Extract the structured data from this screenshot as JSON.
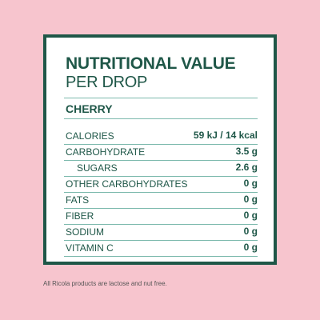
{
  "label": {
    "title": "NUTRITIONAL VALUE",
    "subtitle": "PER DROP",
    "flavor": "CHERRY",
    "rows": [
      {
        "name": "CALORIES",
        "value": "59 kJ / 14 kcal"
      },
      {
        "name": "CARBOHYDRATE",
        "value": "3.5 g"
      },
      {
        "name": "SUGARS",
        "value": "2.6 g"
      },
      {
        "name": "OTHER CARBOHYDRATES",
        "value": "0 g"
      },
      {
        "name": "FATS",
        "value": "0 g"
      },
      {
        "name": "FIBER",
        "value": "0 g"
      },
      {
        "name": "SODIUM",
        "value": "0 g"
      },
      {
        "name": "VITAMIN C",
        "value": "0 g"
      }
    ]
  },
  "footnote": "All Ricola products are lactose and nut free.",
  "colors": {
    "background": "#f7c5ce",
    "accent": "#1f5748",
    "rule": "#7cb9ad"
  }
}
